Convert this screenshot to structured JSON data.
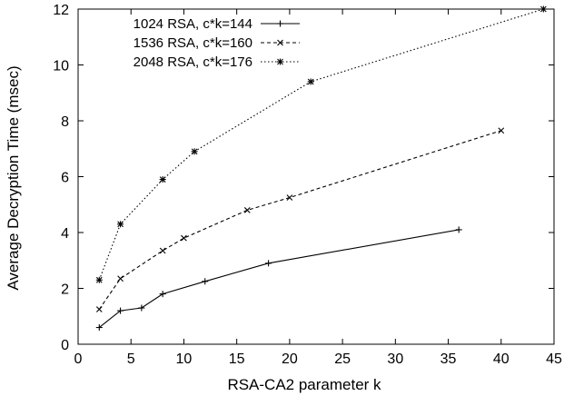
{
  "chart_data": {
    "type": "line",
    "title": "",
    "xlabel": "RSA-CA2 parameter k",
    "ylabel": "Average Decryption Time (msec)",
    "xlim": [
      0,
      45
    ],
    "ylim": [
      0,
      12
    ],
    "xticks": [
      0,
      5,
      10,
      15,
      20,
      25,
      30,
      35,
      40,
      45
    ],
    "yticks": [
      0,
      2,
      4,
      6,
      8,
      10,
      12
    ],
    "grid": false,
    "legend": "top-left",
    "series": [
      {
        "name": "1024 RSA, c*k=144",
        "line_style": "solid",
        "marker": "plus",
        "color": "#000000",
        "x": [
          2,
          4,
          6,
          8,
          12,
          18,
          36
        ],
        "y": [
          0.6,
          1.2,
          1.3,
          1.8,
          2.25,
          2.9,
          4.1
        ]
      },
      {
        "name": "1536 RSA, c*k=160",
        "line_style": "dashed",
        "marker": "cross",
        "color": "#000000",
        "x": [
          2,
          4,
          8,
          10,
          16,
          20,
          40
        ],
        "y": [
          1.25,
          2.35,
          3.35,
          3.8,
          4.8,
          5.25,
          7.65
        ]
      },
      {
        "name": "2048 RSA, c*k=176",
        "line_style": "dotted",
        "marker": "star",
        "color": "#000000",
        "x": [
          2,
          4,
          8,
          11,
          22,
          44
        ],
        "y": [
          2.3,
          4.3,
          5.9,
          6.9,
          9.4,
          12.0
        ]
      }
    ]
  }
}
